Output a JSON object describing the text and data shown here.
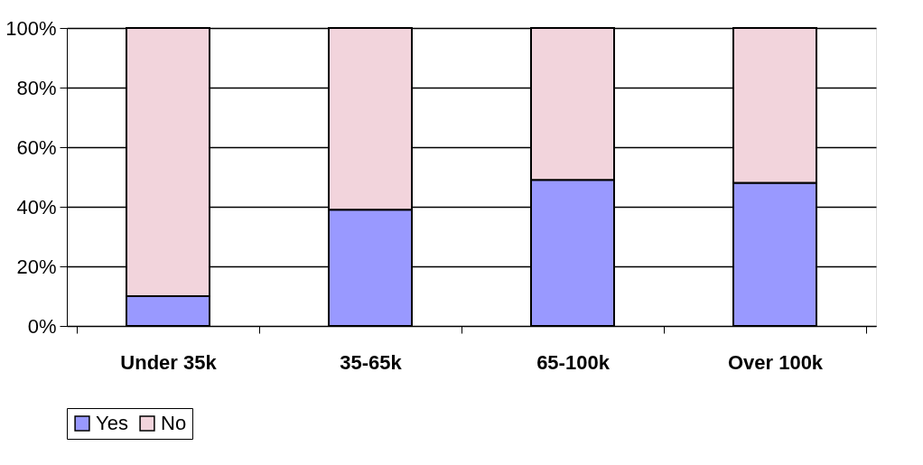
{
  "chart_data": {
    "type": "bar",
    "stacked": true,
    "categories": [
      "Under 35k",
      "35-65k",
      "65-100k",
      "Over 100k"
    ],
    "series": [
      {
        "name": "Yes",
        "color": "#9999ff",
        "values": [
          10,
          39,
          49,
          48
        ]
      },
      {
        "name": "No",
        "color": "#f2d4dc",
        "values": [
          90,
          61,
          51,
          52
        ]
      }
    ],
    "ylim": [
      0,
      100
    ],
    "yticks": [
      {
        "value": 0,
        "label": "0%"
      },
      {
        "value": 20,
        "label": "20%"
      },
      {
        "value": 40,
        "label": "40%"
      },
      {
        "value": 60,
        "label": "60%"
      },
      {
        "value": 80,
        "label": "80%"
      },
      {
        "value": 100,
        "label": "100%"
      }
    ],
    "grid": "y",
    "legend": "bottom"
  }
}
